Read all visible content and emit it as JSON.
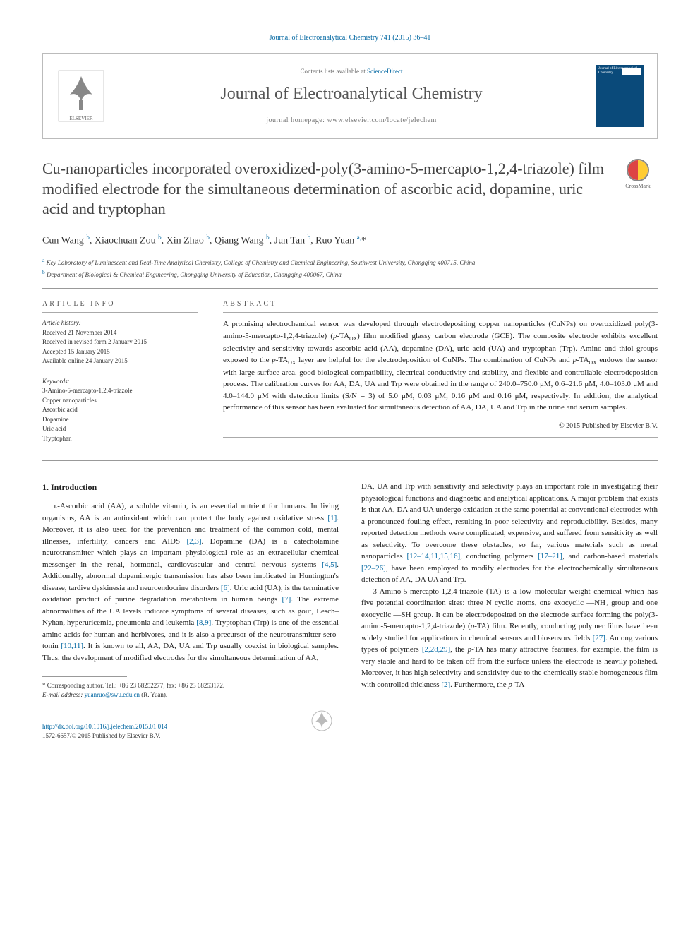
{
  "topCitation": "Journal of Electroanalytical Chemistry 741 (2015) 36–41",
  "header": {
    "contentsPrefix": "Contents lists available at ",
    "contentsLink": "ScienceDirect",
    "journalName": "Journal of Electroanalytical Chemistry",
    "homepagePrefix": "journal homepage: ",
    "homepageUrl": "www.elsevier.com/locate/jelechem",
    "coverTitle": "Journal of Electroanalytical Chemistry"
  },
  "title": "Cu-nanoparticles incorporated overoxidized-poly(3-amino-5-mercapto-1,2,4-triazole) film modified electrode for the simultaneous determination of ascorbic acid, dopamine, uric acid and tryptophan",
  "crossmark": "CrossMark",
  "authorsHtml": "Cun Wang <sup>b</sup>, Xiaochuan Zou <sup>b</sup>, Xin Zhao <sup>b</sup>, Qiang Wang <sup>b</sup>, Jun Tan <sup>b</sup>, Ruo Yuan <sup>a,</sup>*",
  "affiliations": {
    "a": "Key Laboratory of Luminescent and Real-Time Analytical Chemistry, College of Chemistry and Chemical Engineering, Southwest University, Chongqing 400715, China",
    "b": "Department of Biological & Chemical Engineering, Chongqing University of Education, Chongqing 400067, China"
  },
  "articleInfo": {
    "heading": "ARTICLE INFO",
    "historyLabel": "Article history:",
    "history": [
      "Received 21 November 2014",
      "Received in revised form 2 January 2015",
      "Accepted 15 January 2015",
      "Available online 24 January 2015"
    ],
    "keywordsLabel": "Keywords:",
    "keywords": [
      "3-Amino-5-mercapto-1,2,4-triazole",
      "Copper nanoparticles",
      "Ascorbic acid",
      "Dopamine",
      "Uric acid",
      "Tryptophan"
    ]
  },
  "abstract": {
    "heading": "ABSTRACT",
    "text": "A promising electrochemical sensor was developed through electrodepositing copper nanoparticles (CuNPs) on overoxidized poly(3-amino-5-mercapto-1,2,4-triazole) (p-TA_OX) film modified glassy carbon electrode (GCE). The composite electrode exhibits excellent selectivity and sensitivity towards ascorbic acid (AA), dopamine (DA), uric acid (UA) and tryptophan (Trp). Amino and thiol groups exposed to the p-TA_OX layer are helpful for the electrodeposition of CuNPs. The combination of CuNPs and p-TA_OX endows the sensor with large surface area, good biological compatibility, electrical conductivity and stability, and flexible and controllable electrodeposition process. The calibration curves for AA, DA, UA and Trp were obtained in the range of 240.0–750.0 μM, 0.6–21.6 μM, 4.0–103.0 μM and 4.0–144.0 μM with detection limits (S/N = 3) of 5.0 μM, 0.03 μM, 0.16 μM and 0.16 μM, respectively. In addition, the analytical performance of this sensor has been evaluated for simultaneous detection of AA, DA, UA and Trp in the urine and serum samples.",
    "copyright": "© 2015 Published by Elsevier B.V."
  },
  "section1": {
    "heading": "1. Introduction",
    "col1_p1": "ʟ-Ascorbic acid (AA), a soluble vitamin, is an essential nutrient for humans. In living organisms, AA is an antioxidant which can protect the body against oxidative stress [1]. Moreover, it is also used for the prevention and treatment of the common cold, mental illnesses, infertility, cancers and AIDS [2,3]. Dopamine (DA) is a catecholamine neurotransmitter which plays an important physiological role as an extracellular chemical messenger in the renal, hormonal, cardiovascular and central nervous systems [4,5]. Additionally, abnormal dopaminergic transmission has also been implicated in Huntington's disease, tardive dyskinesia and neuroendocrine disorders [6]. Uric acid (UA), is the terminative oxidation product of purine degradation metabolism in human beings [7]. The extreme abnormalities of the UA levels indicate symptoms of several diseases, such as gout, Lesch–Nyhan, hyperuricemia, pneumonia and leukemia [8,9]. Tryptophan (Trp) is one of the essential amino acids for human and herbivores, and it is also a precursor of the neurotransmitter sero-tonin [10,11]. It is known to all, AA, DA, UA and Trp usually coexist in biological samples. Thus, the development of modified electrodes for the simultaneous determination of AA,",
    "col2_p1": "DA, UA and Trp with sensitivity and selectivity plays an important role in investigating their physiological functions and diagnostic and analytical applications. A major problem that exists is that AA, DA and UA undergo oxidation at the same potential at conventional electrodes with a pronounced fouling effect, resulting in poor selectivity and reproducibility. Besides, many reported detection methods were complicated, expensive, and suffered from sensitivity as well as selectivity. To overcome these obstacles, so far, various materials such as metal nanoparticles [12–14,11,15,16], conducting polymers [17–21], and carbon-based materials [22–26], have been employed to modify electrodes for the electrochemically simultaneous detection of AA, DA UA and Trp.",
    "col2_p2": "3-Amino-5-mercapto-1,2,4-triazole (TA) is a low molecular weight chemical which has five potential coordination sites: three N cyclic atoms, one exocyclic —NH₂ group and one exocyclic —SH group. It can be electrodeposited on the electrode surface forming the poly(3-amino-5-mercapto-1,2,4-triazole) (p-TA) film. Recently, conducting polymer films have been widely studied for applications in chemical sensors and biosensors fields [27]. Among various types of polymers [2,28,29], the p-TA has many attractive features, for example, the film is very stable and hard to be taken off from the surface unless the electrode is heavily polished. Moreover, it has high selectivity and sensitivity due to the chemically stable homogeneous film with controlled thickness [2]. Furthermore, the p-TA"
  },
  "footnote": {
    "corrLabel": "* Corresponding author. Tel.: +86 23 68252277; fax: +86 23 68253172.",
    "emailLabel": "E-mail address:",
    "email": "yuanruo@swu.edu.cn",
    "emailName": "(R. Yuan)."
  },
  "footer": {
    "doi": "http://dx.doi.org/10.1016/j.jelechem.2015.01.014",
    "issn": "1572-6657/© 2015 Published by Elsevier B.V."
  }
}
